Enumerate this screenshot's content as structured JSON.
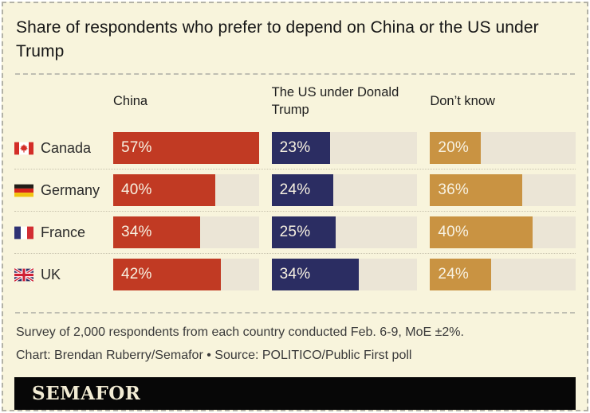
{
  "title": "Share of respondents who prefer to depend on China or the US under Trump",
  "chart_data": {
    "type": "bar",
    "orientation": "horizontal",
    "title": "Share of respondents who prefer to depend on China or the US under Trump",
    "categories": [
      "Canada",
      "Germany",
      "France",
      "UK"
    ],
    "category_flags": [
      "canada",
      "germany",
      "france",
      "uk"
    ],
    "series": [
      {
        "name": "China",
        "color": "#c13a23",
        "values": [
          57,
          40,
          34,
          42
        ]
      },
      {
        "name": "The US under Donald Trump",
        "color": "#2b2d62",
        "values": [
          23,
          24,
          25,
          34
        ]
      },
      {
        "name": "Don’t know",
        "color": "#c99342",
        "values": [
          20,
          36,
          40,
          24
        ]
      }
    ],
    "value_suffix": "%",
    "scale_max": 57,
    "track_color": "#ebe5d6",
    "grid": false,
    "legend_position": "column-headers"
  },
  "footer": {
    "line1": "Survey of 2,000 respondents from each country conducted Feb. 6-9, MoE ±2%.",
    "line2": "Chart: Brendan Ruberry/Semafor • Source: POLITICO/Public First poll"
  },
  "logo": {
    "text": "SEMAFOR"
  },
  "colors": {
    "card_background": "#f8f4dc",
    "bar_china": "#c13a23",
    "bar_us": "#2b2d62",
    "bar_dont_know": "#c99342",
    "bar_track": "#ebe5d6",
    "logo_background": "#070707",
    "logo_text": "#f2ecd4"
  }
}
